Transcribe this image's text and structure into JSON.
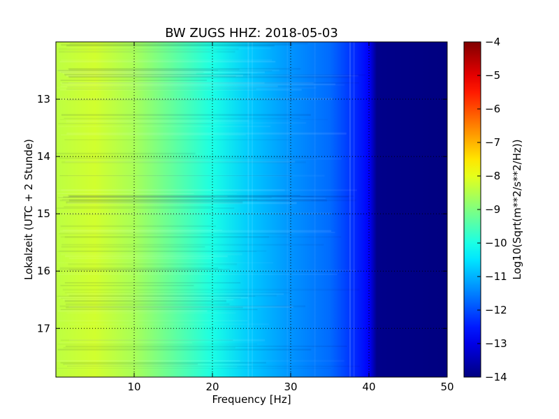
{
  "chart_data": {
    "type": "heatmap",
    "title": "BW ZUGS HHZ: 2018-05-03",
    "xlabel": "Frequency [Hz]",
    "ylabel": "Lokalzeit (UTC + 2 Stunde)",
    "colorbar_label": "Log10(Sqrt(m**2/s**2/Hz))",
    "xlim": [
      0,
      50
    ],
    "ylim": [
      17.85,
      12.0
    ],
    "clim": [
      -14,
      -4
    ],
    "xticks": [
      10,
      20,
      30,
      40,
      50
    ],
    "yticks": [
      13,
      14,
      15,
      16,
      17
    ],
    "colorbar_ticks": [
      -4,
      -5,
      -6,
      -7,
      -8,
      -9,
      -10,
      -11,
      -12,
      -13,
      -14
    ],
    "colormap": "jet",
    "grid": true,
    "spectrum_profile": [
      {
        "frequency_hz": 0,
        "log10_amplitude": -8.4
      },
      {
        "frequency_hz": 5,
        "log10_amplitude": -8.2
      },
      {
        "frequency_hz": 10,
        "log10_amplitude": -8.6
      },
      {
        "frequency_hz": 15,
        "log10_amplitude": -9.3
      },
      {
        "frequency_hz": 20,
        "log10_amplitude": -10.0
      },
      {
        "frequency_hz": 25,
        "log10_amplitude": -10.8
      },
      {
        "frequency_hz": 30,
        "log10_amplitude": -11.3
      },
      {
        "frequency_hz": 35,
        "log10_amplitude": -11.7
      },
      {
        "frequency_hz": 38,
        "log10_amplitude": -12.3
      },
      {
        "frequency_hz": 40,
        "log10_amplitude": -12.8
      },
      {
        "frequency_hz": 41,
        "log10_amplitude": -13.9
      },
      {
        "frequency_hz": 50,
        "log10_amplitude": -14.0
      }
    ]
  }
}
